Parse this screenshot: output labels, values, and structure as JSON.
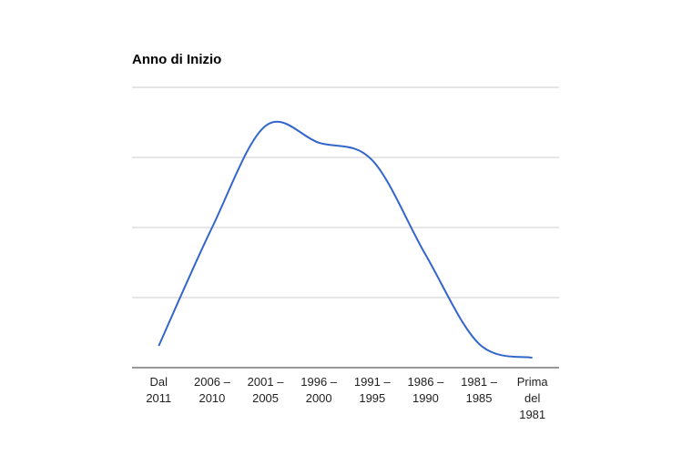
{
  "chart_data": {
    "type": "line",
    "title": "Anno di Inizio",
    "categories": [
      "Dal 2011",
      "2006 – 2010",
      "2001 – 2005",
      "1996 – 2000",
      "1991 – 1995",
      "1986 – 1990",
      "1981 – 1985",
      "Prima del 1981"
    ],
    "values": [
      0.31,
      2.0,
      3.45,
      3.21,
      2.96,
      1.61,
      0.34,
      0.14
    ],
    "color": "#3366cc",
    "smooth": true,
    "ylim": [
      0,
      4
    ],
    "yticks": [
      0,
      1,
      2,
      3,
      4
    ],
    "ytick_labels": false,
    "grid": true
  }
}
